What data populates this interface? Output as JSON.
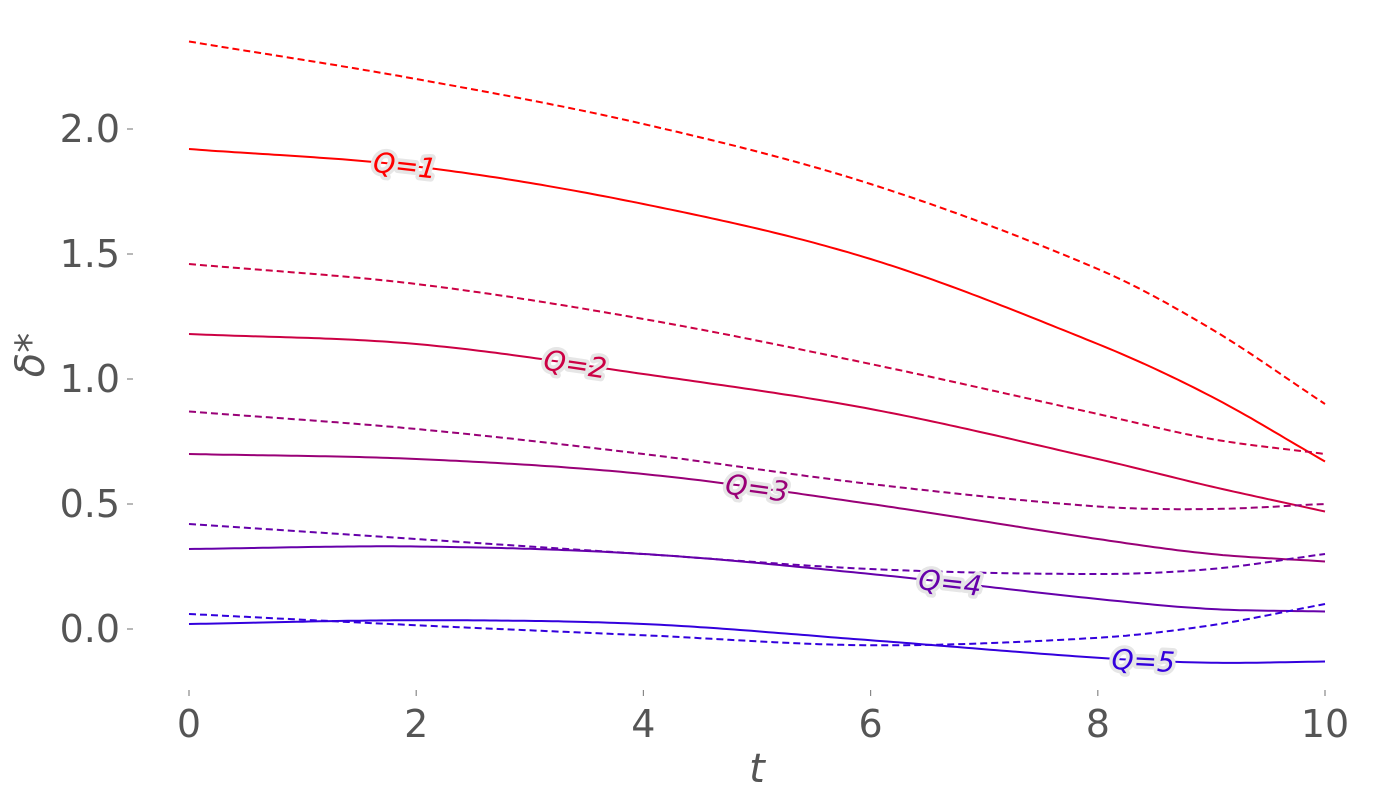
{
  "chart_data": {
    "type": "line",
    "title": "",
    "xlabel": "t",
    "ylabel": "δ*",
    "xlim": [
      0,
      10
    ],
    "ylim": [
      -0.25,
      2.35
    ],
    "grid": false,
    "x_ticks": [
      "0",
      "2",
      "4",
      "6",
      "8",
      "10"
    ],
    "y_ticks": [
      "0.0",
      "0.5",
      "1.0",
      "1.5",
      "2.0"
    ],
    "x": [
      0,
      2,
      4,
      6,
      8,
      9,
      10
    ],
    "series": [
      {
        "label": "Q=1",
        "color": "#ff0000",
        "style": "solid",
        "values": [
          1.92,
          1.85,
          1.7,
          1.48,
          1.14,
          0.93,
          0.67
        ],
        "label_t": 1.9
      },
      {
        "color": "#ff0000",
        "style": "dashed",
        "values": [
          2.35,
          2.2,
          2.02,
          1.78,
          1.44,
          1.2,
          0.9
        ]
      },
      {
        "label": "Q=2",
        "color": "#cc0044",
        "style": "solid",
        "values": [
          1.18,
          1.14,
          1.02,
          0.88,
          0.68,
          0.57,
          0.47
        ],
        "label_t": 3.4
      },
      {
        "color": "#cc0044",
        "style": "dashed",
        "values": [
          1.46,
          1.38,
          1.24,
          1.06,
          0.86,
          0.76,
          0.7
        ]
      },
      {
        "label": "Q=3",
        "color": "#990077",
        "style": "solid",
        "values": [
          0.7,
          0.68,
          0.62,
          0.5,
          0.36,
          0.3,
          0.27
        ],
        "label_t": 5.0
      },
      {
        "color": "#990077",
        "style": "dashed",
        "values": [
          0.87,
          0.8,
          0.7,
          0.58,
          0.49,
          0.48,
          0.5
        ]
      },
      {
        "label": "Q=4",
        "color": "#6600aa",
        "style": "solid",
        "values": [
          0.32,
          0.33,
          0.3,
          0.22,
          0.12,
          0.08,
          0.07
        ],
        "label_t": 6.7
      },
      {
        "color": "#6600aa",
        "style": "dashed",
        "values": [
          0.42,
          0.36,
          0.3,
          0.24,
          0.22,
          0.24,
          0.3
        ]
      },
      {
        "label": "Q=5",
        "color": "#3300dd",
        "style": "solid",
        "values": [
          0.02,
          0.035,
          0.02,
          -0.045,
          -0.115,
          -0.135,
          -0.13
        ],
        "label_t": 8.4
      },
      {
        "color": "#3300dd",
        "style": "dashed",
        "values": [
          0.06,
          0.015,
          -0.025,
          -0.065,
          -0.035,
          0.015,
          0.1
        ]
      }
    ]
  }
}
